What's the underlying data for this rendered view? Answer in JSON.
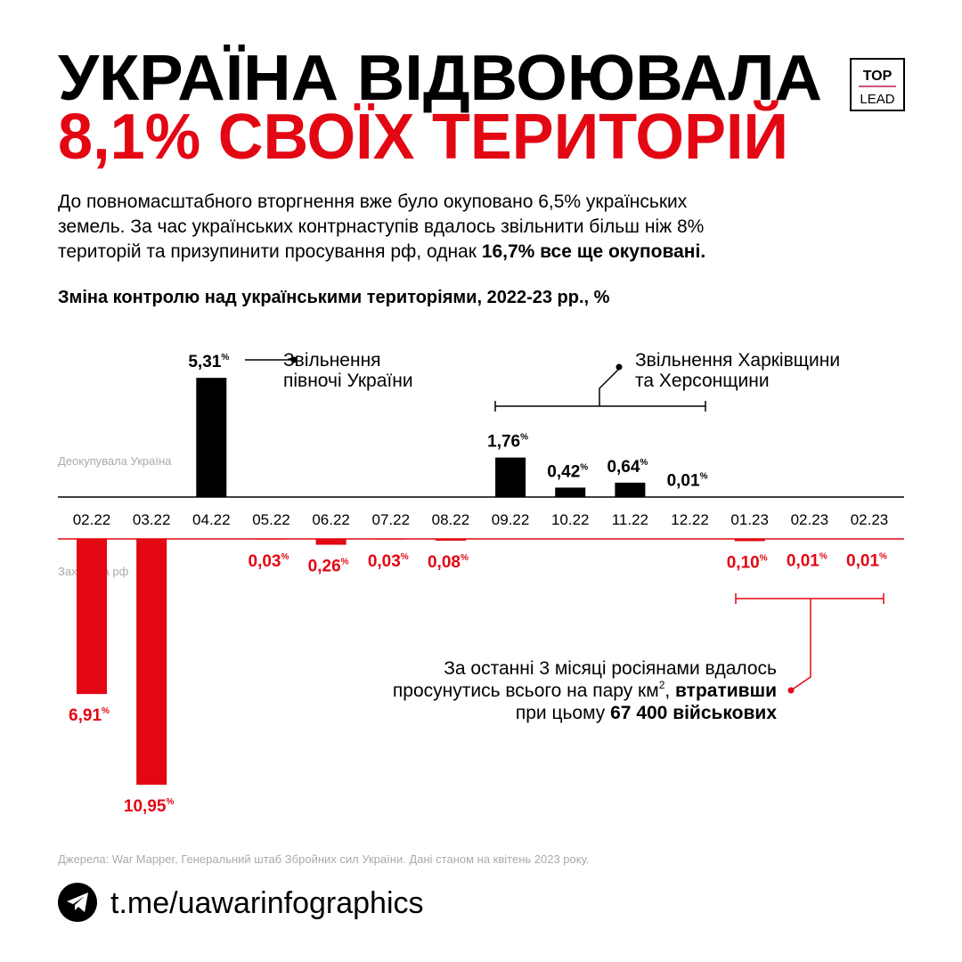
{
  "logo": [
    "TOP",
    "LEAD"
  ],
  "header": {
    "title_line1": "УКРАЇНА ВІДВОЮВАЛА",
    "title_line2": "8,1% СВОЇХ ТЕРИТОРІЙ",
    "intro": [
      "До повномасштабного вторгнення вже було окуповано 6,5% українських",
      "земель. За час українських контрнаступів вдалось звільнити більш ніж 8%",
      "територій та призупинити просування рф, однак "
    ],
    "intro_bold": "16,7% все ще окуповані."
  },
  "chart_data": {
    "type": "bar",
    "title": "Зміна контролю над українськими територіями, 2022-23 рр., %",
    "categories": [
      "02.22",
      "03.22",
      "04.22",
      "05.22",
      "06.22",
      "07.22",
      "08.22",
      "09.22",
      "10.22",
      "11.22",
      "12.22",
      "01.23",
      "02.23",
      "02.23"
    ],
    "ylim": [
      0,
      11
    ],
    "series": [
      {
        "name": "Деокупувала Україна",
        "color": "#000000",
        "values": [
          null,
          null,
          5.31,
          null,
          null,
          null,
          null,
          1.76,
          0.42,
          0.64,
          0.01,
          null,
          null,
          null
        ],
        "value_labels": [
          null,
          null,
          "5,31%",
          null,
          null,
          null,
          null,
          "1,76%",
          "0,42%",
          "0,64%",
          "0,01%",
          null,
          null,
          null
        ]
      },
      {
        "name": "Захопила рф",
        "color": "#e30613",
        "values": [
          6.91,
          10.95,
          null,
          0.03,
          0.26,
          0.03,
          0.08,
          null,
          null,
          null,
          null,
          0.1,
          0.01,
          0.01
        ],
        "value_labels": [
          "6,91%",
          "10,95%",
          null,
          "0,03%",
          "0,26%",
          "0,03%",
          "0,08%",
          null,
          null,
          null,
          null,
          "0,10%",
          "0,01%",
          "0,01%"
        ]
      }
    ],
    "annotations": [
      {
        "lines": [
          "Звільнення",
          "півночі України"
        ]
      },
      {
        "lines": [
          "Звільнення Харківщини",
          "та Херсонщини"
        ]
      }
    ],
    "note": {
      "line1": "За останні 3 місяці росіянами вдалось",
      "line2": "просунутись всього на пару км",
      "sup": "2",
      "comma": ", ",
      "bold2": "втративши",
      "line3": "при цьому ",
      "bold3": "67 400 військових"
    }
  },
  "source": "Джерела: War Mapper, Генеральний штаб Збройних сил України. Дані станом на квітень 2023 року.",
  "link": "t.me/uawarinfographics"
}
